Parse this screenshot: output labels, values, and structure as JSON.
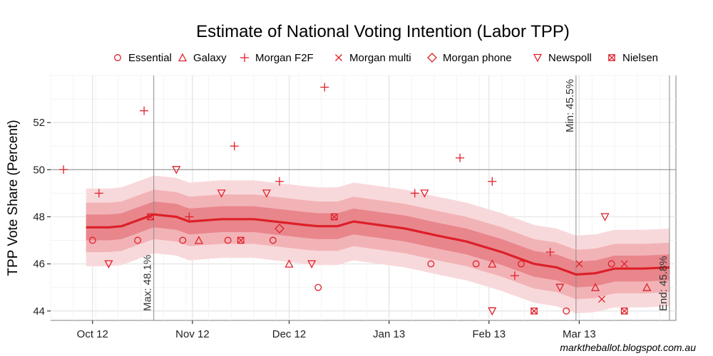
{
  "chart_data": {
    "type": "scatter",
    "title": "Estimate of National Voting Intention (Labor TPP)",
    "xlabel": "",
    "ylabel": "TPP Vote Share (Percent)",
    "xlim": [
      "2012-09-18",
      "2013-03-31"
    ],
    "ylim": [
      43.6,
      54.0
    ],
    "grid": true,
    "legend_position": "top",
    "x_ticks": [
      {
        "date": "2012-10-01",
        "label": "Oct 12"
      },
      {
        "date": "2012-11-01",
        "label": "Nov 12"
      },
      {
        "date": "2012-12-01",
        "label": "Dec 12"
      },
      {
        "date": "2013-01-01",
        "label": "Jan 13"
      },
      {
        "date": "2013-02-01",
        "label": "Feb 13"
      },
      {
        "date": "2013-03-01",
        "label": "Mar 13"
      }
    ],
    "y_ticks": [
      44,
      46,
      48,
      50,
      52
    ],
    "reference_line_y": 50,
    "color": "#e0202a",
    "series": [
      {
        "name": "Essential",
        "marker": "circle",
        "points": [
          [
            "2012-10-01",
            47
          ],
          [
            "2012-10-15",
            47
          ],
          [
            "2012-10-29",
            47
          ],
          [
            "2012-11-12",
            47
          ],
          [
            "2012-11-26",
            47
          ],
          [
            "2012-12-10",
            45
          ],
          [
            "2013-01-14",
            46
          ],
          [
            "2013-01-28",
            46
          ],
          [
            "2013-02-11",
            46
          ],
          [
            "2013-02-25",
            44
          ],
          [
            "2013-03-11",
            46
          ]
        ]
      },
      {
        "name": "Galaxy",
        "marker": "triangle-up",
        "points": [
          [
            "2012-11-03",
            47
          ],
          [
            "2012-12-01",
            46
          ],
          [
            "2013-02-02",
            46
          ],
          [
            "2013-03-06",
            45
          ],
          [
            "2013-03-22",
            45
          ]
        ]
      },
      {
        "name": "Morgan F2F",
        "marker": "plus",
        "points": [
          [
            "2012-09-22",
            50
          ],
          [
            "2012-10-03",
            49
          ],
          [
            "2012-10-17",
            52.5
          ],
          [
            "2012-10-31",
            48
          ],
          [
            "2012-11-14",
            51
          ],
          [
            "2012-11-28",
            49.5
          ],
          [
            "2012-12-12",
            53.5
          ],
          [
            "2013-01-09",
            49
          ],
          [
            "2013-01-23",
            50.5
          ],
          [
            "2013-02-02",
            49.5
          ],
          [
            "2013-02-09",
            45.5
          ],
          [
            "2013-02-20",
            46.5
          ]
        ]
      },
      {
        "name": "Morgan multi",
        "marker": "cross",
        "points": [
          [
            "2013-03-01",
            46
          ],
          [
            "2013-03-08",
            44.5
          ],
          [
            "2013-03-15",
            46
          ]
        ]
      },
      {
        "name": "Morgan phone",
        "marker": "diamond",
        "points": [
          [
            "2012-11-28",
            47.5
          ]
        ]
      },
      {
        "name": "Newspoll",
        "marker": "triangle-down",
        "points": [
          [
            "2012-10-06",
            46
          ],
          [
            "2012-10-27",
            50
          ],
          [
            "2012-11-10",
            49
          ],
          [
            "2012-11-24",
            49
          ],
          [
            "2012-12-08",
            46
          ],
          [
            "2013-01-12",
            49
          ],
          [
            "2013-02-02",
            44
          ],
          [
            "2013-02-23",
            45
          ],
          [
            "2013-03-09",
            48
          ]
        ]
      },
      {
        "name": "Nielsen",
        "marker": "boxed-cross",
        "points": [
          [
            "2012-10-19",
            48
          ],
          [
            "2012-11-16",
            47
          ],
          [
            "2012-12-15",
            48
          ],
          [
            "2013-02-15",
            44
          ],
          [
            "2013-03-15",
            44
          ]
        ]
      }
    ],
    "trend": {
      "name": "Estimate",
      "points": [
        [
          "2012-09-29",
          47.55
        ],
        [
          "2012-10-06",
          47.55
        ],
        [
          "2012-10-10",
          47.6
        ],
        [
          "2012-10-20",
          48.1
        ],
        [
          "2012-10-27",
          48.0
        ],
        [
          "2012-10-31",
          47.8
        ],
        [
          "2012-11-10",
          47.9
        ],
        [
          "2012-11-20",
          47.9
        ],
        [
          "2012-12-06",
          47.65
        ],
        [
          "2012-12-10",
          47.6
        ],
        [
          "2012-12-16",
          47.6
        ],
        [
          "2012-12-21",
          47.8
        ],
        [
          "2013-01-06",
          47.5
        ],
        [
          "2013-01-16",
          47.2
        ],
        [
          "2013-01-25",
          46.95
        ],
        [
          "2013-02-05",
          46.5
        ],
        [
          "2013-02-15",
          46.0
        ],
        [
          "2013-02-22",
          45.85
        ],
        [
          "2013-02-28",
          45.55
        ],
        [
          "2013-03-06",
          45.6
        ],
        [
          "2013-03-12",
          45.8
        ],
        [
          "2013-03-21",
          45.8
        ],
        [
          "2013-03-29",
          45.85
        ]
      ],
      "band_halfwidths": [
        0.55,
        1.05,
        1.65
      ],
      "band_colors": [
        "#e8868c",
        "#f2b3b7",
        "#f8d9db"
      ]
    },
    "annotations": [
      {
        "date": "2012-10-20",
        "label": "Max: 48.1%",
        "side": "below"
      },
      {
        "date": "2013-02-28",
        "label": "Min: 45.5%",
        "side": "above"
      },
      {
        "date": "2013-03-29",
        "label": "End: 45.8%",
        "side": "below"
      }
    ],
    "credit": "marktheballot.blogspot.com.au"
  }
}
